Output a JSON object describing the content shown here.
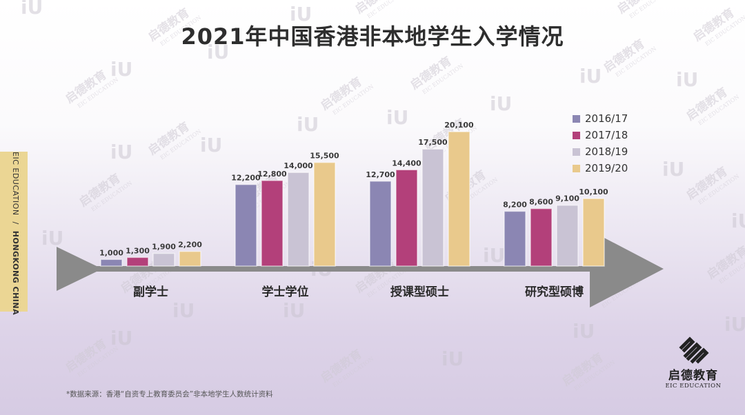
{
  "title": "2021年中国香港非本地学生入学情况",
  "side_label": {
    "left": "EIC EDUCATION",
    "separator": "/",
    "right": "HONGKONG CHINA"
  },
  "source_note": "*数据来源：香港“自资专上教育委员会”非本地学生人数统计资料",
  "logo": {
    "cn": "启德教育",
    "en": "EIC EDUCATION",
    "icon": "eic-logo-icon"
  },
  "watermark": {
    "cn": "启德教育",
    "en": "EIC EDUCATION",
    "mark": "iU"
  },
  "colors": {
    "accent_arrow": "#8a8a8a",
    "side_band": "#ebd694"
  },
  "chart_data": {
    "type": "bar",
    "title": "2021年中国香港非本地学生入学情况",
    "categories": [
      "副学士",
      "学士学位",
      "授课型硕士",
      "研究型硕博"
    ],
    "series": [
      {
        "name": "2016/17",
        "color": "#8b86b3",
        "values": [
          1000,
          12200,
          12700,
          8200
        ]
      },
      {
        "name": "2017/18",
        "color": "#b3407a",
        "values": [
          1300,
          12800,
          14400,
          8600
        ]
      },
      {
        "name": "2018/19",
        "color": "#c9c3d4",
        "values": [
          1900,
          14000,
          17500,
          9100
        ]
      },
      {
        "name": "2019/20",
        "color": "#e9c98c",
        "values": [
          2200,
          15500,
          20100,
          10100
        ]
      }
    ],
    "value_labels": [
      [
        "1,000",
        "1,300",
        "1,900",
        "2,200"
      ],
      [
        "12,200",
        "12,800",
        "14,000",
        "15,500"
      ],
      [
        "12,700",
        "14,400",
        "17,500",
        "20,100"
      ],
      [
        "8,200",
        "8,600",
        "9,100",
        "10,100"
      ]
    ],
    "legend_position": "top-right",
    "grid": false,
    "axis_visible": false
  }
}
